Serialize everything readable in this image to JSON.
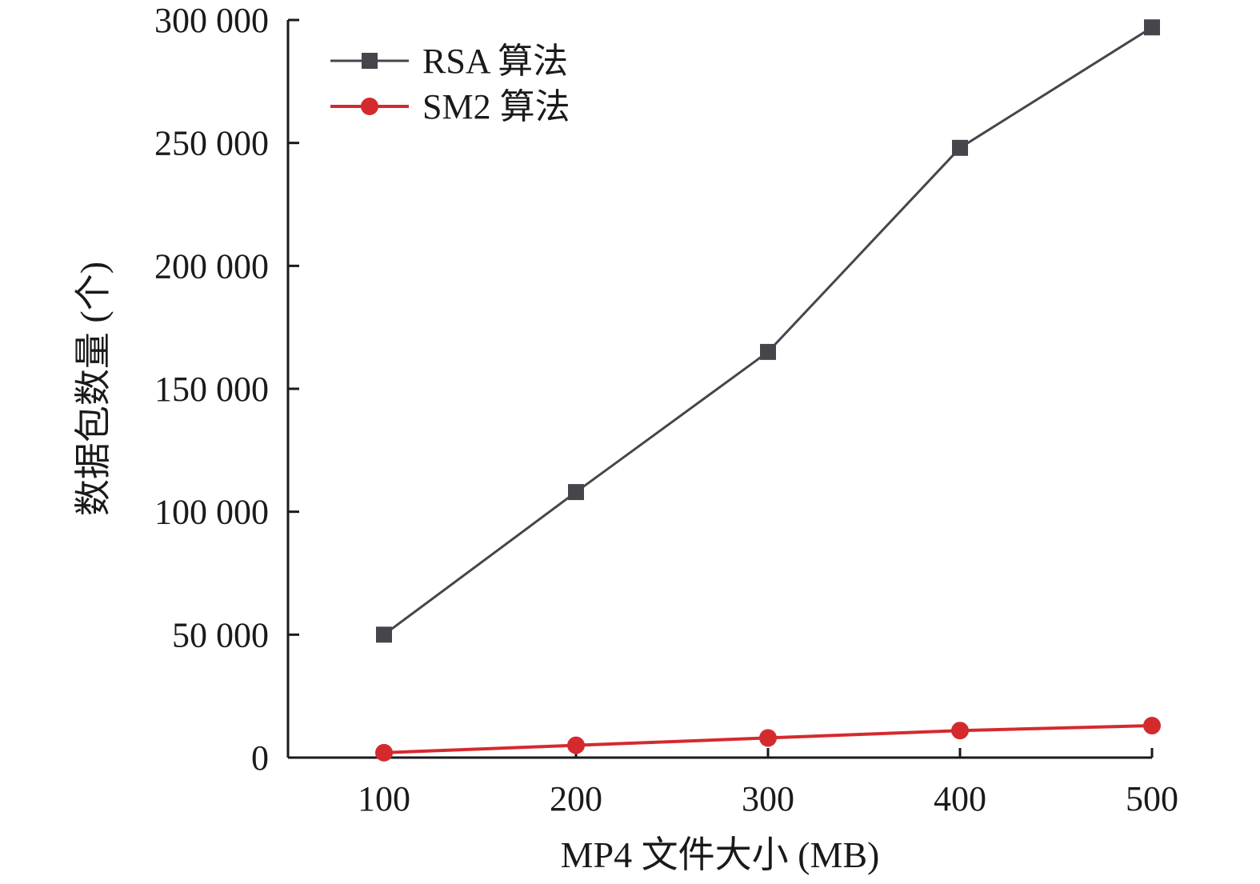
{
  "chart_data": {
    "type": "line",
    "xlabel": "MP4 文件大小 (MB)",
    "ylabel": "数据包数量 (个)",
    "x": [
      100,
      200,
      300,
      400,
      500
    ],
    "x_tick_labels": [
      "100",
      "200",
      "300",
      "400",
      "500"
    ],
    "xlim": [
      50,
      500
    ],
    "ylim": [
      0,
      300000
    ],
    "y_ticks": [
      0,
      50000,
      100000,
      150000,
      200000,
      250000,
      300000
    ],
    "y_tick_labels": [
      "0",
      "50 000",
      "100 000",
      "150 000",
      "200 000",
      "250 000",
      "300 000"
    ],
    "grid": false,
    "legend_position": "top-left",
    "series": [
      {
        "name": "RSA 算法",
        "marker": "square",
        "color": "#45464b",
        "values": [
          50000,
          108000,
          165000,
          248000,
          297000
        ]
      },
      {
        "name": "SM2 算法",
        "marker": "circle",
        "color": "#d42a2e",
        "values": [
          2000,
          5000,
          8000,
          11000,
          13000
        ]
      }
    ]
  }
}
